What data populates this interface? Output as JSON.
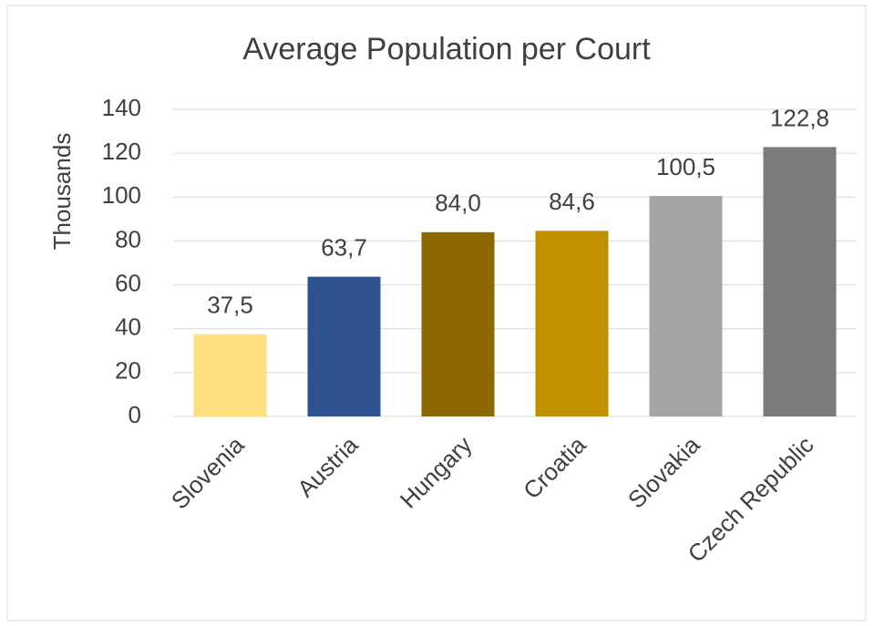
{
  "chart_data": {
    "type": "bar",
    "title": "Average Population per Court",
    "y_label": "Thousands",
    "categories": [
      "Slovenia",
      "Austria",
      "Hungary",
      "Croatia",
      "Slovakia",
      "Czech Republic"
    ],
    "values": [
      37.5,
      63.7,
      84.0,
      84.6,
      100.5,
      122.8
    ],
    "value_labels": [
      "37,5",
      "63,7",
      "84,0",
      "84,6",
      "100,5",
      "122,8"
    ],
    "colors": [
      "#ffdf7f",
      "#2f5290",
      "#8b6900",
      "#bf9000",
      "#a5a5a5",
      "#7b7b7b"
    ],
    "ylim": [
      0,
      140
    ],
    "yticks": [
      0,
      20,
      40,
      60,
      80,
      100,
      120,
      140
    ],
    "grid": true
  }
}
